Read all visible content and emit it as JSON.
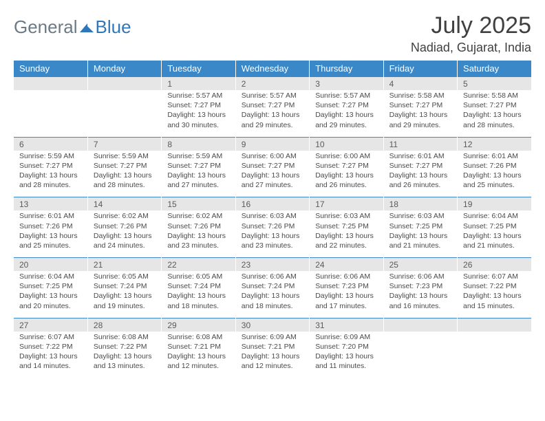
{
  "logo": {
    "general": "General",
    "blue": "Blue"
  },
  "title": "July 2025",
  "location": "Nadiad, Gujarat, India",
  "colors": {
    "header_bg": "#3b88c8",
    "header_text": "#ffffff",
    "date_bg": "#e6e6e6",
    "date_text": "#5a5a5a",
    "body_text": "#4a4a4a",
    "title_text": "#404040",
    "logo_gray": "#6b7a85",
    "logo_blue": "#2f77b8"
  },
  "day_headers": [
    "Sunday",
    "Monday",
    "Tuesday",
    "Wednesday",
    "Thursday",
    "Friday",
    "Saturday"
  ],
  "weeks": [
    {
      "dates": [
        "",
        "",
        "1",
        "2",
        "3",
        "4",
        "5"
      ],
      "cells": [
        null,
        null,
        {
          "sunrise": "Sunrise: 5:57 AM",
          "sunset": "Sunset: 7:27 PM",
          "daylight1": "Daylight: 13 hours",
          "daylight2": "and 30 minutes."
        },
        {
          "sunrise": "Sunrise: 5:57 AM",
          "sunset": "Sunset: 7:27 PM",
          "daylight1": "Daylight: 13 hours",
          "daylight2": "and 29 minutes."
        },
        {
          "sunrise": "Sunrise: 5:57 AM",
          "sunset": "Sunset: 7:27 PM",
          "daylight1": "Daylight: 13 hours",
          "daylight2": "and 29 minutes."
        },
        {
          "sunrise": "Sunrise: 5:58 AM",
          "sunset": "Sunset: 7:27 PM",
          "daylight1": "Daylight: 13 hours",
          "daylight2": "and 29 minutes."
        },
        {
          "sunrise": "Sunrise: 5:58 AM",
          "sunset": "Sunset: 7:27 PM",
          "daylight1": "Daylight: 13 hours",
          "daylight2": "and 28 minutes."
        }
      ]
    },
    {
      "dates": [
        "6",
        "7",
        "8",
        "9",
        "10",
        "11",
        "12"
      ],
      "cells": [
        {
          "sunrise": "Sunrise: 5:59 AM",
          "sunset": "Sunset: 7:27 PM",
          "daylight1": "Daylight: 13 hours",
          "daylight2": "and 28 minutes."
        },
        {
          "sunrise": "Sunrise: 5:59 AM",
          "sunset": "Sunset: 7:27 PM",
          "daylight1": "Daylight: 13 hours",
          "daylight2": "and 28 minutes."
        },
        {
          "sunrise": "Sunrise: 5:59 AM",
          "sunset": "Sunset: 7:27 PM",
          "daylight1": "Daylight: 13 hours",
          "daylight2": "and 27 minutes."
        },
        {
          "sunrise": "Sunrise: 6:00 AM",
          "sunset": "Sunset: 7:27 PM",
          "daylight1": "Daylight: 13 hours",
          "daylight2": "and 27 minutes."
        },
        {
          "sunrise": "Sunrise: 6:00 AM",
          "sunset": "Sunset: 7:27 PM",
          "daylight1": "Daylight: 13 hours",
          "daylight2": "and 26 minutes."
        },
        {
          "sunrise": "Sunrise: 6:01 AM",
          "sunset": "Sunset: 7:27 PM",
          "daylight1": "Daylight: 13 hours",
          "daylight2": "and 26 minutes."
        },
        {
          "sunrise": "Sunrise: 6:01 AM",
          "sunset": "Sunset: 7:26 PM",
          "daylight1": "Daylight: 13 hours",
          "daylight2": "and 25 minutes."
        }
      ]
    },
    {
      "dates": [
        "13",
        "14",
        "15",
        "16",
        "17",
        "18",
        "19"
      ],
      "cells": [
        {
          "sunrise": "Sunrise: 6:01 AM",
          "sunset": "Sunset: 7:26 PM",
          "daylight1": "Daylight: 13 hours",
          "daylight2": "and 25 minutes."
        },
        {
          "sunrise": "Sunrise: 6:02 AM",
          "sunset": "Sunset: 7:26 PM",
          "daylight1": "Daylight: 13 hours",
          "daylight2": "and 24 minutes."
        },
        {
          "sunrise": "Sunrise: 6:02 AM",
          "sunset": "Sunset: 7:26 PM",
          "daylight1": "Daylight: 13 hours",
          "daylight2": "and 23 minutes."
        },
        {
          "sunrise": "Sunrise: 6:03 AM",
          "sunset": "Sunset: 7:26 PM",
          "daylight1": "Daylight: 13 hours",
          "daylight2": "and 23 minutes."
        },
        {
          "sunrise": "Sunrise: 6:03 AM",
          "sunset": "Sunset: 7:25 PM",
          "daylight1": "Daylight: 13 hours",
          "daylight2": "and 22 minutes."
        },
        {
          "sunrise": "Sunrise: 6:03 AM",
          "sunset": "Sunset: 7:25 PM",
          "daylight1": "Daylight: 13 hours",
          "daylight2": "and 21 minutes."
        },
        {
          "sunrise": "Sunrise: 6:04 AM",
          "sunset": "Sunset: 7:25 PM",
          "daylight1": "Daylight: 13 hours",
          "daylight2": "and 21 minutes."
        }
      ]
    },
    {
      "dates": [
        "20",
        "21",
        "22",
        "23",
        "24",
        "25",
        "26"
      ],
      "cells": [
        {
          "sunrise": "Sunrise: 6:04 AM",
          "sunset": "Sunset: 7:25 PM",
          "daylight1": "Daylight: 13 hours",
          "daylight2": "and 20 minutes."
        },
        {
          "sunrise": "Sunrise: 6:05 AM",
          "sunset": "Sunset: 7:24 PM",
          "daylight1": "Daylight: 13 hours",
          "daylight2": "and 19 minutes."
        },
        {
          "sunrise": "Sunrise: 6:05 AM",
          "sunset": "Sunset: 7:24 PM",
          "daylight1": "Daylight: 13 hours",
          "daylight2": "and 18 minutes."
        },
        {
          "sunrise": "Sunrise: 6:06 AM",
          "sunset": "Sunset: 7:24 PM",
          "daylight1": "Daylight: 13 hours",
          "daylight2": "and 18 minutes."
        },
        {
          "sunrise": "Sunrise: 6:06 AM",
          "sunset": "Sunset: 7:23 PM",
          "daylight1": "Daylight: 13 hours",
          "daylight2": "and 17 minutes."
        },
        {
          "sunrise": "Sunrise: 6:06 AM",
          "sunset": "Sunset: 7:23 PM",
          "daylight1": "Daylight: 13 hours",
          "daylight2": "and 16 minutes."
        },
        {
          "sunrise": "Sunrise: 6:07 AM",
          "sunset": "Sunset: 7:22 PM",
          "daylight1": "Daylight: 13 hours",
          "daylight2": "and 15 minutes."
        }
      ]
    },
    {
      "dates": [
        "27",
        "28",
        "29",
        "30",
        "31",
        "",
        ""
      ],
      "cells": [
        {
          "sunrise": "Sunrise: 6:07 AM",
          "sunset": "Sunset: 7:22 PM",
          "daylight1": "Daylight: 13 hours",
          "daylight2": "and 14 minutes."
        },
        {
          "sunrise": "Sunrise: 6:08 AM",
          "sunset": "Sunset: 7:22 PM",
          "daylight1": "Daylight: 13 hours",
          "daylight2": "and 13 minutes."
        },
        {
          "sunrise": "Sunrise: 6:08 AM",
          "sunset": "Sunset: 7:21 PM",
          "daylight1": "Daylight: 13 hours",
          "daylight2": "and 12 minutes."
        },
        {
          "sunrise": "Sunrise: 6:09 AM",
          "sunset": "Sunset: 7:21 PM",
          "daylight1": "Daylight: 13 hours",
          "daylight2": "and 12 minutes."
        },
        {
          "sunrise": "Sunrise: 6:09 AM",
          "sunset": "Sunset: 7:20 PM",
          "daylight1": "Daylight: 13 hours",
          "daylight2": "and 11 minutes."
        },
        null,
        null
      ]
    }
  ]
}
